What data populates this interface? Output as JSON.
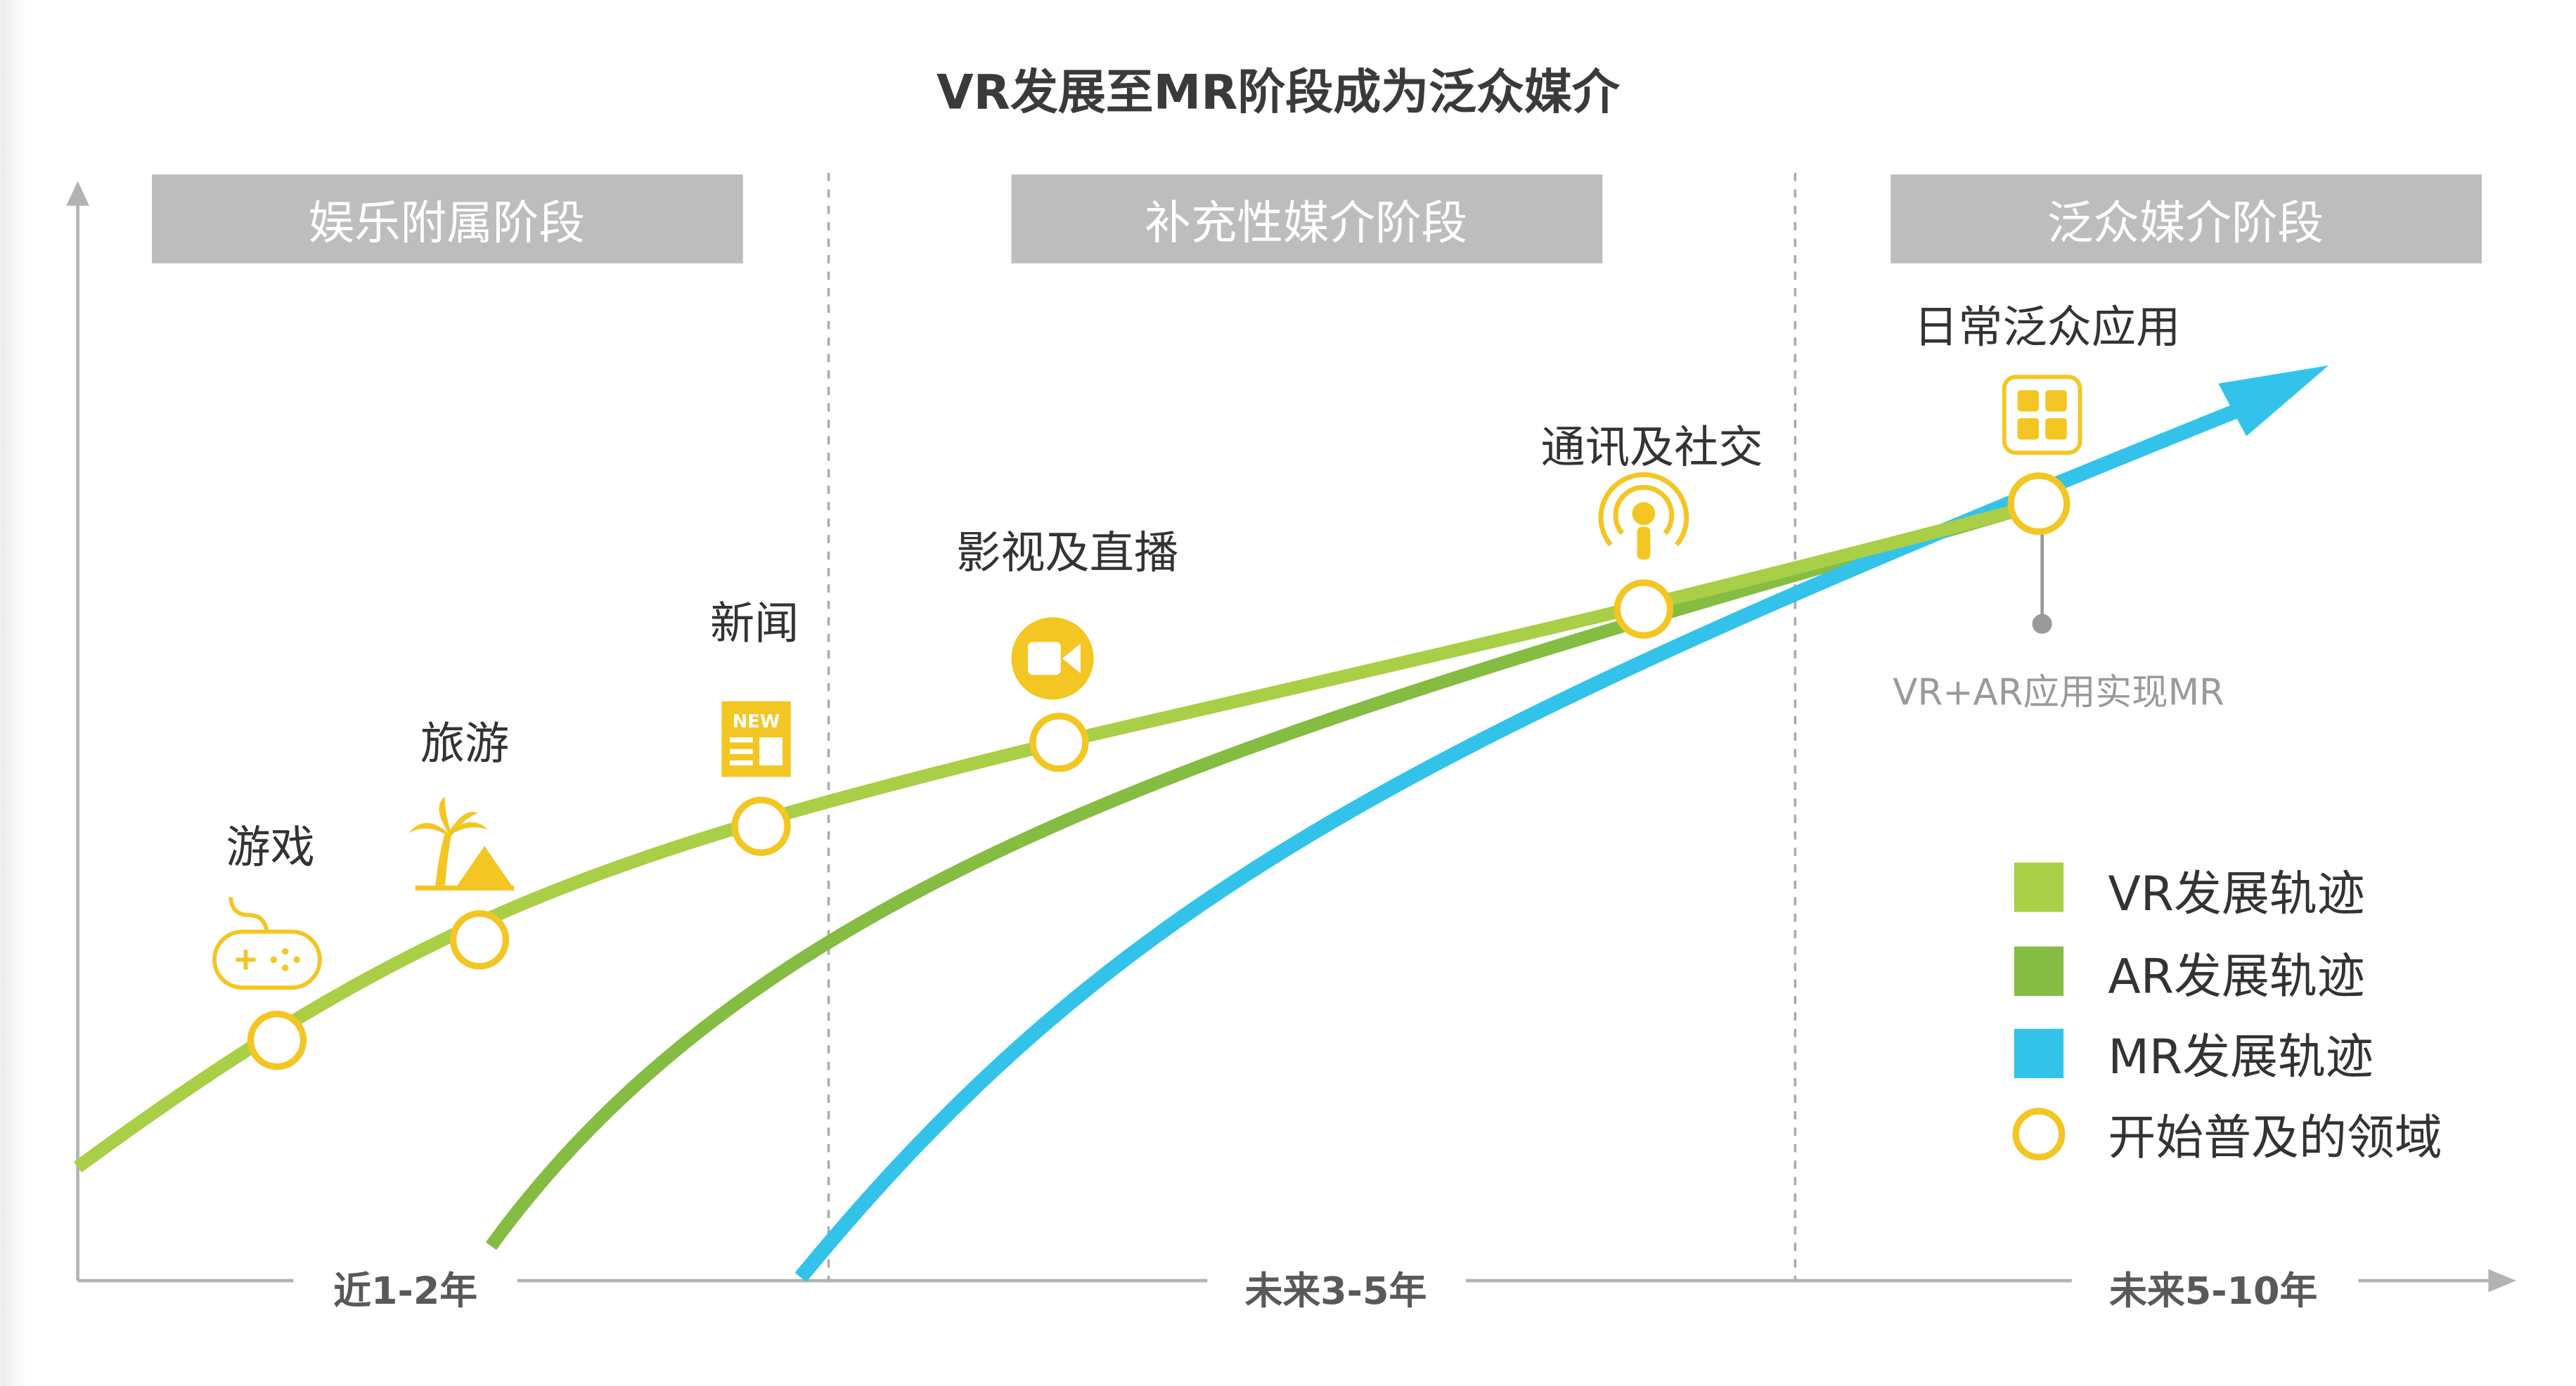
{
  "title": "VR发展至MR阶段成为泛众媒介",
  "phases": [
    {
      "label": "娱乐附属阶段"
    },
    {
      "label": "补充性媒介阶段"
    },
    {
      "label": "泛众媒介阶段"
    }
  ],
  "time_axis": [
    "近1-2年",
    "未来3-5年",
    "未来5-10年"
  ],
  "domains": [
    {
      "label": "游戏",
      "icon": "gamepad-icon"
    },
    {
      "label": "旅游",
      "icon": "palm-tree-icon"
    },
    {
      "label": "新闻",
      "icon": "newspaper-icon",
      "icon_text": "NEW"
    },
    {
      "label": "影视及直播",
      "icon": "video-camera-icon"
    },
    {
      "label": "通讯及社交",
      "icon": "podcast-icon"
    },
    {
      "label": "日常泛众应用",
      "icon": "app-grid-icon"
    }
  ],
  "mr_note": "VR+AR应用实现MR",
  "legend": [
    {
      "label": "VR发展轨迹",
      "color": "#a9cf46",
      "shape": "square"
    },
    {
      "label": "AR发展轨迹",
      "color": "#85bc42",
      "shape": "square"
    },
    {
      "label": "MR发展轨迹",
      "color": "#33c3ea",
      "shape": "square"
    },
    {
      "label": "开始普及的领域",
      "color": "#f3c623",
      "shape": "ring"
    }
  ],
  "colors": {
    "vr": "#a9cf46",
    "ar": "#85bc42",
    "mr": "#33c3ea",
    "marker": "#f3c623",
    "phase_box": "#bdbdbd",
    "divider": "#aaaaaa"
  }
}
